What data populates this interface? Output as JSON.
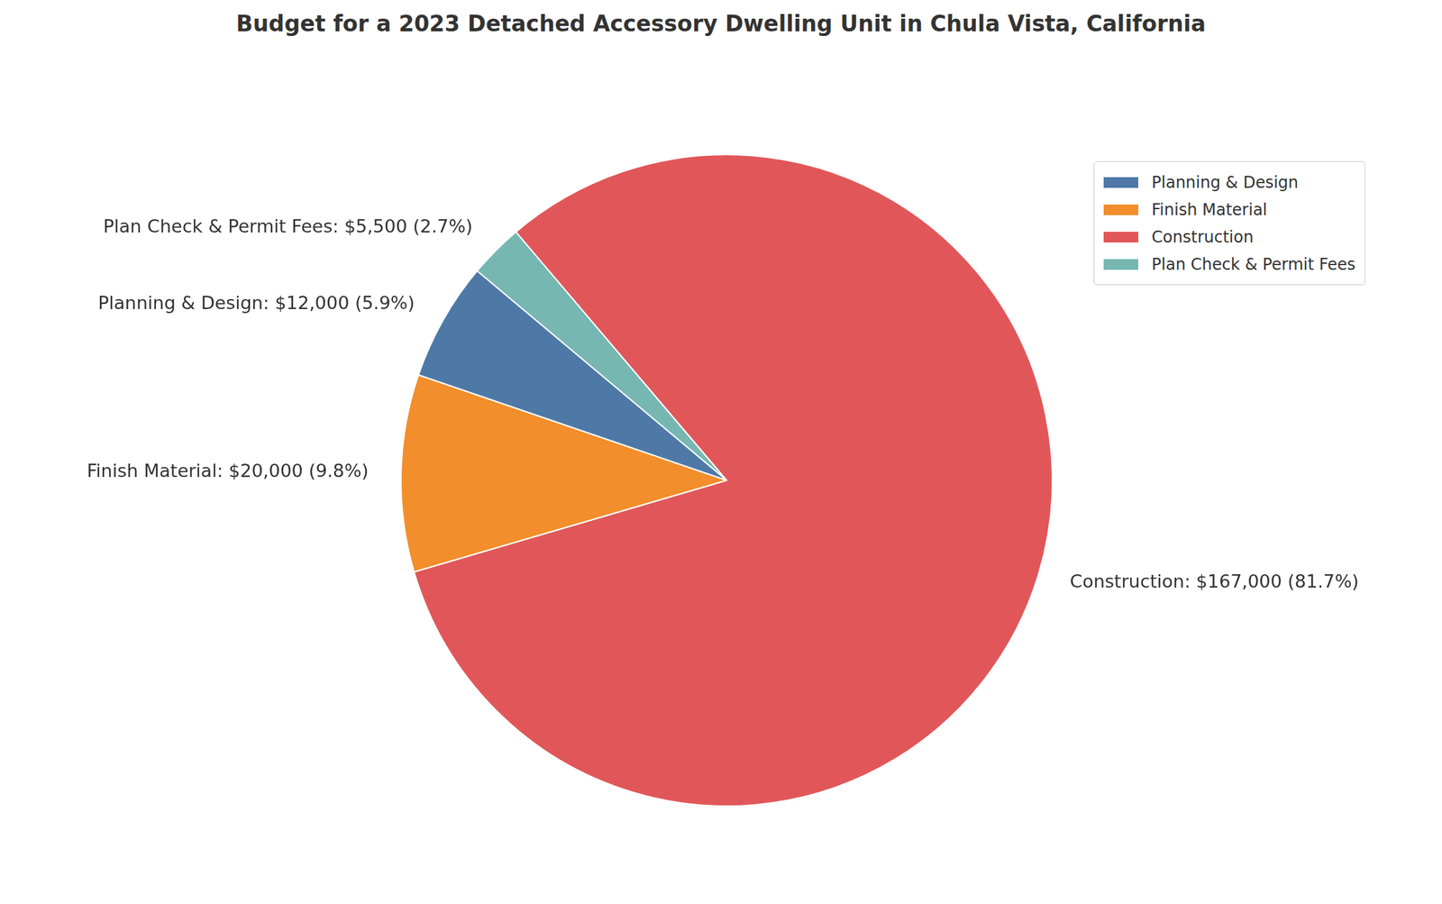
{
  "chart_data": {
    "type": "pie",
    "title": "Budget for a 2023 Detached Accessory Dwelling Unit in Chula Vista, California",
    "categories": [
      "Planning & Design",
      "Finish Material",
      "Construction",
      "Plan Check & Permit Fees"
    ],
    "values": [
      12000,
      20000,
      167000,
      5500
    ],
    "value_labels": [
      "Planning & Design: $12,000 (5.9%)",
      "Finish Material: $20,000 (9.8%)",
      "Construction: $167,000 (81.7%)",
      "Plan Check & Permit Fees: $5,500 (2.7%)"
    ],
    "colors": [
      "#4e79a7",
      "#f28e2b",
      "#e15759",
      "#76b7b2"
    ],
    "legend": "upper right"
  }
}
